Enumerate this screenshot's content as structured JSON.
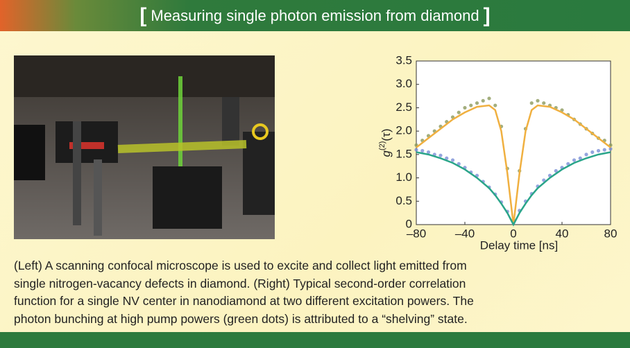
{
  "header": {
    "bracket_left": "[",
    "title": "Measuring single photon emission from diamond",
    "bracket_right": "]"
  },
  "chart_data": {
    "type": "scatter",
    "ylabel": {
      "base": "g",
      "sup": "(2)",
      "arg": "(τ)"
    },
    "xlabel": "Delay time [ns]",
    "xlim": [
      -80,
      80
    ],
    "ylim": [
      0,
      3.5
    ],
    "xticks": [
      {
        "value": -80,
        "label": "–80"
      },
      {
        "value": -40,
        "label": "–40"
      },
      0,
      40,
      80
    ],
    "yticks": [
      0,
      0.5,
      {
        "value": 1,
        "label": "1.0"
      },
      1.5,
      {
        "value": 2,
        "label": "2.0"
      },
      2.5,
      {
        "value": 3,
        "label": "3.0"
      },
      3.5
    ],
    "series": [
      {
        "type": "scatter",
        "color": "#8c9a5c",
        "x": [
          -80,
          -75,
          -70,
          -65,
          -60,
          -55,
          -50,
          -45,
          -40,
          -35,
          -30,
          -25,
          -20,
          -15,
          -10,
          -5,
          0,
          5,
          10,
          15,
          20,
          25,
          30,
          35,
          40,
          45,
          50,
          55,
          60,
          65,
          70,
          75,
          80
        ],
        "values": [
          1.7,
          1.8,
          1.9,
          2.0,
          2.1,
          2.2,
          2.3,
          2.4,
          2.5,
          2.55,
          2.6,
          2.65,
          2.7,
          2.55,
          2.1,
          1.2,
          0.1,
          1.15,
          2.05,
          2.6,
          2.65,
          2.6,
          2.55,
          2.5,
          2.45,
          2.35,
          2.25,
          2.15,
          2.05,
          1.95,
          1.85,
          1.8,
          1.7
        ]
      },
      {
        "type": "scatter",
        "color": "#7b8fd6",
        "x": [
          -80,
          -75,
          -70,
          -65,
          -60,
          -55,
          -50,
          -45,
          -40,
          -35,
          -30,
          -25,
          -20,
          -15,
          -10,
          -5,
          0,
          5,
          10,
          15,
          20,
          25,
          30,
          35,
          40,
          45,
          50,
          55,
          60,
          65,
          70,
          75,
          80
        ],
        "values": [
          1.6,
          1.58,
          1.55,
          1.5,
          1.48,
          1.42,
          1.38,
          1.3,
          1.22,
          1.12,
          1.05,
          0.92,
          0.8,
          0.65,
          0.48,
          0.28,
          0.05,
          0.3,
          0.5,
          0.66,
          0.82,
          0.95,
          1.05,
          1.15,
          1.22,
          1.3,
          1.38,
          1.42,
          1.5,
          1.55,
          1.58,
          1.6,
          1.62
        ]
      },
      {
        "type": "line",
        "color": "#f0b040",
        "x": [
          -80,
          -70,
          -60,
          -50,
          -40,
          -30,
          -20,
          -15,
          -10,
          -5,
          0,
          5,
          10,
          15,
          20,
          30,
          40,
          50,
          60,
          70,
          80
        ],
        "values": [
          1.65,
          1.85,
          2.05,
          2.25,
          2.4,
          2.52,
          2.55,
          2.45,
          2.0,
          1.1,
          0,
          1.1,
          2.0,
          2.45,
          2.55,
          2.52,
          2.4,
          2.25,
          2.05,
          1.85,
          1.65
        ]
      },
      {
        "type": "line",
        "color": "#2aa58a",
        "x": [
          -80,
          -70,
          -60,
          -50,
          -40,
          -30,
          -20,
          -15,
          -10,
          -5,
          0,
          5,
          10,
          15,
          20,
          30,
          40,
          50,
          60,
          70,
          80
        ],
        "values": [
          1.55,
          1.5,
          1.42,
          1.32,
          1.18,
          1.0,
          0.78,
          0.63,
          0.45,
          0.25,
          0,
          0.25,
          0.45,
          0.63,
          0.78,
          1.0,
          1.18,
          1.32,
          1.42,
          1.5,
          1.55
        ]
      }
    ]
  },
  "caption": {
    "lines": [
      "(Left) A scanning confocal microscope is used to excite and collect light emitted from",
      "single nitrogen-vacancy defects in diamond. (Right) Typical second-order correlation",
      "function for a single NV center in nanodiamond at two different excitation powers. The",
      "photon bunching at high pump powers (green dots) is attributed to a “shelving” state."
    ]
  }
}
